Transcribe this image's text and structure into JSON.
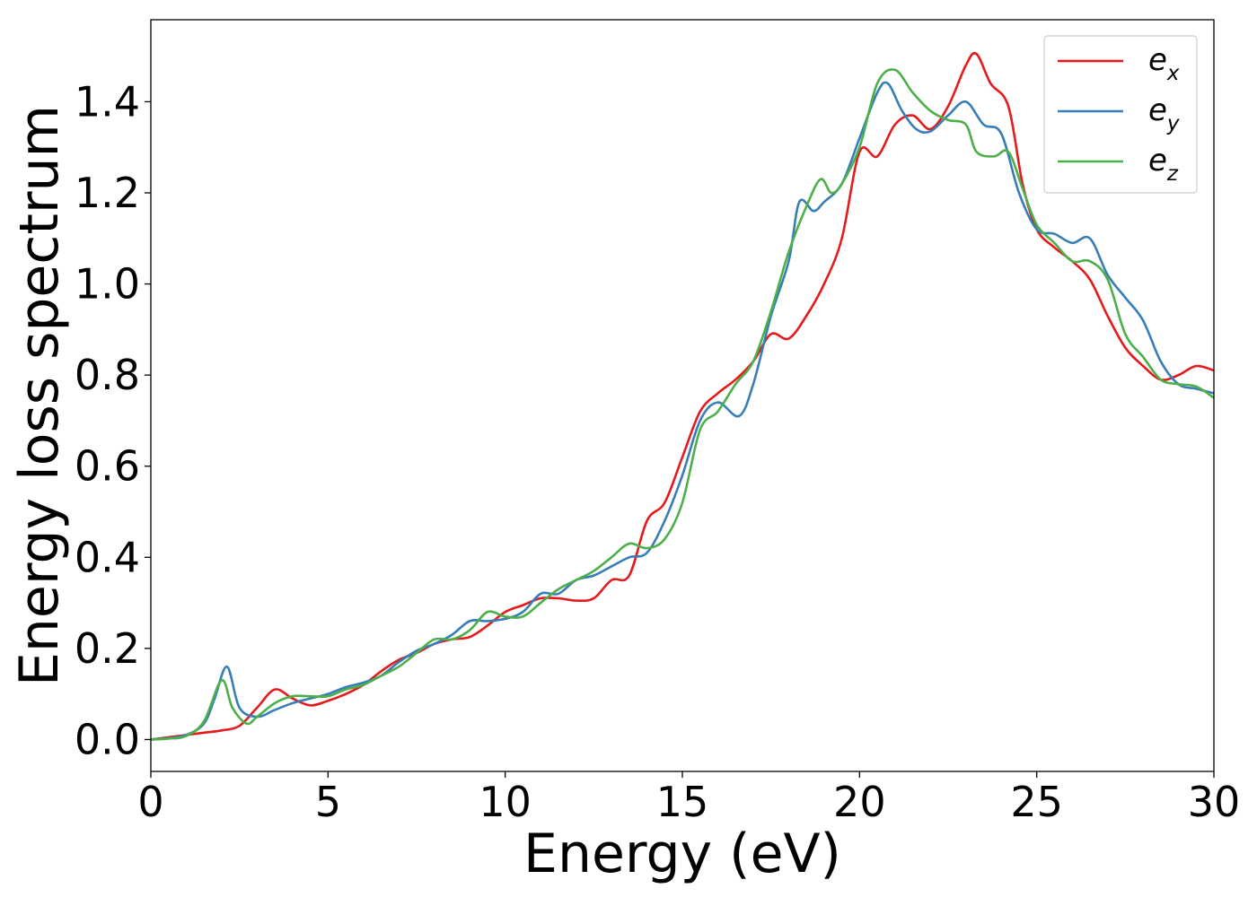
{
  "chart_data": {
    "type": "line",
    "title": "",
    "xlabel": "Energy (eV)",
    "ylabel": "Energy loss spectrum",
    "xlim": [
      0,
      30
    ],
    "ylim": [
      -0.07,
      1.58
    ],
    "xticks": [
      0,
      5,
      10,
      15,
      20,
      25,
      30
    ],
    "xtick_labels": [
      "0",
      "5",
      "10",
      "15",
      "20",
      "25",
      "30"
    ],
    "yticks": [
      0.0,
      0.2,
      0.4,
      0.6,
      0.8,
      1.0,
      1.2,
      1.4
    ],
    "ytick_labels": [
      "0.0",
      "0.2",
      "0.4",
      "0.6",
      "0.8",
      "1.0",
      "1.2",
      "1.4"
    ],
    "grid": false,
    "legend_position": "top-right",
    "series": [
      {
        "name": "e",
        "subscript": "x",
        "color": "#e41a1c",
        "points": [
          [
            0,
            0
          ],
          [
            0.5,
            0.005
          ],
          [
            1,
            0.01
          ],
          [
            1.5,
            0.015
          ],
          [
            2,
            0.02
          ],
          [
            2.5,
            0.03
          ],
          [
            3,
            0.07
          ],
          [
            3.5,
            0.11
          ],
          [
            4,
            0.09
          ],
          [
            4.5,
            0.075
          ],
          [
            5,
            0.085
          ],
          [
            5.5,
            0.1
          ],
          [
            6,
            0.12
          ],
          [
            6.5,
            0.15
          ],
          [
            7,
            0.175
          ],
          [
            7.5,
            0.19
          ],
          [
            8,
            0.21
          ],
          [
            8.5,
            0.22
          ],
          [
            9,
            0.225
          ],
          [
            9.5,
            0.25
          ],
          [
            10,
            0.28
          ],
          [
            10.5,
            0.295
          ],
          [
            11,
            0.31
          ],
          [
            11.5,
            0.31
          ],
          [
            12,
            0.305
          ],
          [
            12.5,
            0.31
          ],
          [
            13,
            0.35
          ],
          [
            13.5,
            0.36
          ],
          [
            14,
            0.48
          ],
          [
            14.5,
            0.52
          ],
          [
            15,
            0.62
          ],
          [
            15.5,
            0.72
          ],
          [
            16,
            0.76
          ],
          [
            16.5,
            0.79
          ],
          [
            17,
            0.83
          ],
          [
            17.5,
            0.89
          ],
          [
            18,
            0.88
          ],
          [
            18.5,
            0.93
          ],
          [
            19,
            1.0
          ],
          [
            19.5,
            1.1
          ],
          [
            20,
            1.29
          ],
          [
            20.5,
            1.28
          ],
          [
            21,
            1.35
          ],
          [
            21.5,
            1.37
          ],
          [
            22,
            1.34
          ],
          [
            22.5,
            1.39
          ],
          [
            23,
            1.48
          ],
          [
            23.3,
            1.505
          ],
          [
            23.7,
            1.44
          ],
          [
            24.2,
            1.39
          ],
          [
            24.6,
            1.22
          ],
          [
            25,
            1.12
          ],
          [
            25.5,
            1.08
          ],
          [
            26,
            1.05
          ],
          [
            26.5,
            1.01
          ],
          [
            27,
            0.93
          ],
          [
            27.5,
            0.86
          ],
          [
            28,
            0.82
          ],
          [
            28.5,
            0.79
          ],
          [
            29,
            0.8
          ],
          [
            29.5,
            0.82
          ],
          [
            30,
            0.81
          ]
        ]
      },
      {
        "name": "e",
        "subscript": "y",
        "color": "#377eb8",
        "points": [
          [
            0,
            0
          ],
          [
            0.5,
            0.003
          ],
          [
            1,
            0.01
          ],
          [
            1.5,
            0.035
          ],
          [
            1.8,
            0.09
          ],
          [
            2.15,
            0.16
          ],
          [
            2.5,
            0.07
          ],
          [
            3,
            0.05
          ],
          [
            3.5,
            0.065
          ],
          [
            4,
            0.08
          ],
          [
            4.5,
            0.09
          ],
          [
            5,
            0.1
          ],
          [
            5.5,
            0.115
          ],
          [
            6,
            0.125
          ],
          [
            6.5,
            0.14
          ],
          [
            7,
            0.17
          ],
          [
            7.5,
            0.195
          ],
          [
            8,
            0.21
          ],
          [
            8.5,
            0.23
          ],
          [
            9,
            0.26
          ],
          [
            9.5,
            0.26
          ],
          [
            10,
            0.265
          ],
          [
            10.5,
            0.28
          ],
          [
            11,
            0.32
          ],
          [
            11.5,
            0.32
          ],
          [
            12,
            0.35
          ],
          [
            12.5,
            0.36
          ],
          [
            13,
            0.38
          ],
          [
            13.5,
            0.4
          ],
          [
            14,
            0.41
          ],
          [
            14.5,
            0.48
          ],
          [
            15,
            0.58
          ],
          [
            15.5,
            0.7
          ],
          [
            16,
            0.74
          ],
          [
            16.6,
            0.71
          ],
          [
            17,
            0.78
          ],
          [
            17.5,
            0.93
          ],
          [
            18,
            1.05
          ],
          [
            18.3,
            1.18
          ],
          [
            18.7,
            1.16
          ],
          [
            19,
            1.18
          ],
          [
            19.5,
            1.22
          ],
          [
            20,
            1.32
          ],
          [
            20.5,
            1.42
          ],
          [
            20.8,
            1.44
          ],
          [
            21.2,
            1.38
          ],
          [
            21.6,
            1.34
          ],
          [
            22,
            1.335
          ],
          [
            22.5,
            1.37
          ],
          [
            23,
            1.4
          ],
          [
            23.5,
            1.35
          ],
          [
            24,
            1.33
          ],
          [
            24.5,
            1.2
          ],
          [
            25,
            1.12
          ],
          [
            25.5,
            1.11
          ],
          [
            26,
            1.09
          ],
          [
            26.5,
            1.1
          ],
          [
            27,
            1.02
          ],
          [
            27.5,
            0.97
          ],
          [
            28,
            0.92
          ],
          [
            28.5,
            0.83
          ],
          [
            29,
            0.78
          ],
          [
            29.5,
            0.77
          ],
          [
            30,
            0.76
          ]
        ]
      },
      {
        "name": "e",
        "subscript": "z",
        "color": "#4daf4a",
        "points": [
          [
            0,
            0
          ],
          [
            0.5,
            0.002
          ],
          [
            1,
            0.008
          ],
          [
            1.5,
            0.04
          ],
          [
            2,
            0.13
          ],
          [
            2.3,
            0.07
          ],
          [
            2.7,
            0.035
          ],
          [
            3,
            0.05
          ],
          [
            3.5,
            0.08
          ],
          [
            4,
            0.095
          ],
          [
            4.5,
            0.095
          ],
          [
            5,
            0.095
          ],
          [
            5.5,
            0.11
          ],
          [
            6,
            0.12
          ],
          [
            6.5,
            0.14
          ],
          [
            7,
            0.16
          ],
          [
            7.5,
            0.19
          ],
          [
            8,
            0.22
          ],
          [
            8.5,
            0.22
          ],
          [
            9,
            0.24
          ],
          [
            9.5,
            0.28
          ],
          [
            10,
            0.27
          ],
          [
            10.5,
            0.27
          ],
          [
            11,
            0.3
          ],
          [
            11.5,
            0.33
          ],
          [
            12,
            0.35
          ],
          [
            12.5,
            0.37
          ],
          [
            13,
            0.4
          ],
          [
            13.5,
            0.43
          ],
          [
            14,
            0.42
          ],
          [
            14.5,
            0.44
          ],
          [
            15,
            0.52
          ],
          [
            15.5,
            0.68
          ],
          [
            16,
            0.72
          ],
          [
            16.5,
            0.78
          ],
          [
            17,
            0.83
          ],
          [
            17.5,
            0.94
          ],
          [
            18,
            1.07
          ],
          [
            18.5,
            1.17
          ],
          [
            18.9,
            1.23
          ],
          [
            19.2,
            1.2
          ],
          [
            19.5,
            1.22
          ],
          [
            20,
            1.3
          ],
          [
            20.5,
            1.44
          ],
          [
            21,
            1.47
          ],
          [
            21.5,
            1.42
          ],
          [
            22,
            1.38
          ],
          [
            22.5,
            1.36
          ],
          [
            23,
            1.35
          ],
          [
            23.3,
            1.29
          ],
          [
            23.8,
            1.28
          ],
          [
            24.2,
            1.29
          ],
          [
            24.6,
            1.21
          ],
          [
            25,
            1.13
          ],
          [
            25.5,
            1.09
          ],
          [
            26,
            1.05
          ],
          [
            26.5,
            1.05
          ],
          [
            27,
            1.01
          ],
          [
            27.5,
            0.89
          ],
          [
            28,
            0.84
          ],
          [
            28.5,
            0.79
          ],
          [
            29,
            0.78
          ],
          [
            29.5,
            0.775
          ],
          [
            30,
            0.75
          ]
        ]
      }
    ]
  }
}
